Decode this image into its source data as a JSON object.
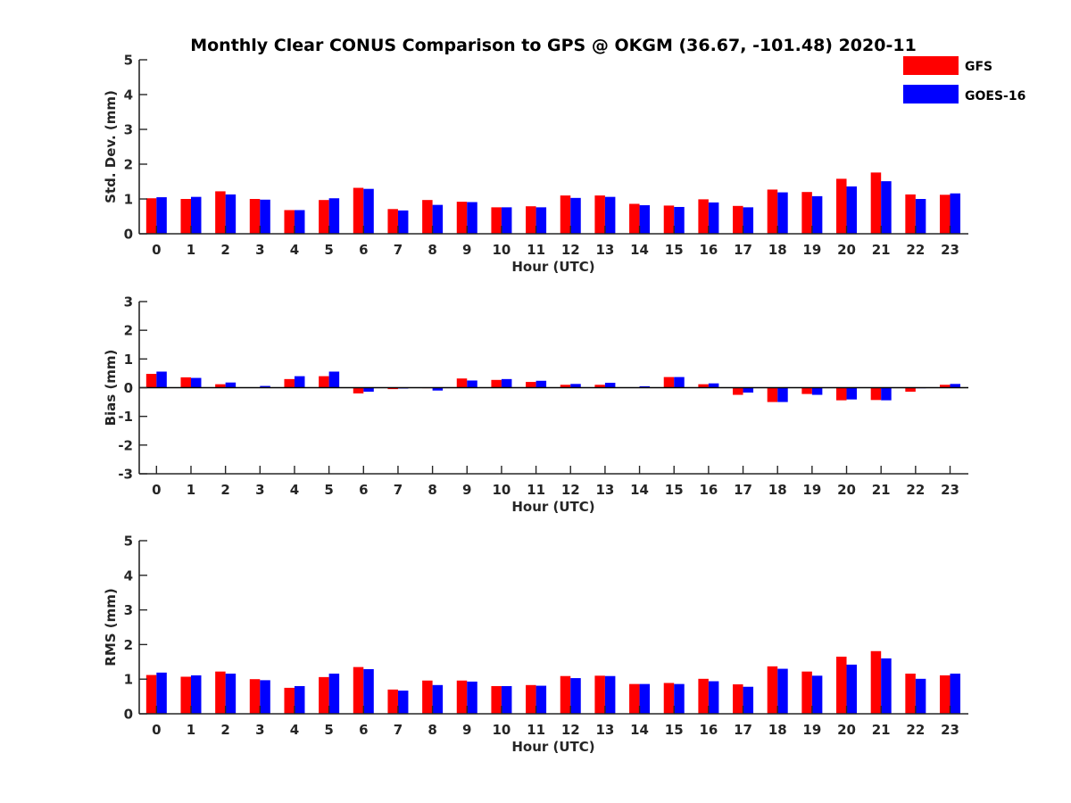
{
  "colors": {
    "gfs": "#ff0000",
    "goes": "#0000ff",
    "axis": "#262626"
  },
  "chart_data": {
    "type": "bar",
    "title": "Monthly Clear CONUS Comparison to GPS @ OKGM (36.67, -101.48) 2020-11",
    "legend": {
      "placement": "top-right",
      "entries": [
        "GFS",
        "GOES-16"
      ]
    },
    "grid": false,
    "categories": [
      "0",
      "1",
      "2",
      "3",
      "4",
      "5",
      "6",
      "7",
      "8",
      "9",
      "10",
      "11",
      "12",
      "13",
      "14",
      "15",
      "16",
      "17",
      "18",
      "19",
      "20",
      "21",
      "22",
      "23"
    ],
    "panels": [
      {
        "id": "std",
        "ylabel": "Std. Dev. (mm)",
        "xlabel": "Hour (UTC)",
        "ylim": [
          0,
          5
        ],
        "yticks": [
          0,
          1,
          2,
          3,
          4,
          5
        ],
        "series": [
          {
            "name": "GFS",
            "values": [
              1.02,
              1.0,
              1.22,
              1.0,
              0.68,
              0.97,
              1.32,
              0.71,
              0.97,
              0.92,
              0.76,
              0.79,
              1.1,
              1.1,
              0.86,
              0.81,
              0.99,
              0.8,
              1.27,
              1.2,
              1.58,
              1.76,
              1.13,
              1.12
            ]
          },
          {
            "name": "GOES-16",
            "values": [
              1.05,
              1.06,
              1.13,
              0.98,
              0.68,
              1.02,
              1.29,
              0.67,
              0.83,
              0.91,
              0.76,
              0.76,
              1.03,
              1.06,
              0.82,
              0.77,
              0.9,
              0.76,
              1.19,
              1.08,
              1.36,
              1.51,
              1.0,
              1.16
            ]
          }
        ]
      },
      {
        "id": "bias",
        "ylabel": "Bias (mm)",
        "xlabel": "Hour (UTC)",
        "ylim": [
          -3,
          3
        ],
        "yticks": [
          -3,
          -2,
          -1,
          0,
          1,
          2,
          3
        ],
        "series": [
          {
            "name": "GFS",
            "values": [
              0.48,
              0.36,
              0.12,
              0.01,
              0.3,
              0.4,
              -0.2,
              -0.05,
              0.0,
              0.32,
              0.27,
              0.2,
              0.1,
              0.1,
              0.01,
              0.37,
              0.12,
              -0.25,
              -0.5,
              -0.22,
              -0.44,
              -0.43,
              -0.14,
              0.1
            ]
          },
          {
            "name": "GOES-16",
            "values": [
              0.56,
              0.34,
              0.18,
              0.06,
              0.4,
              0.56,
              -0.14,
              -0.03,
              -0.1,
              0.25,
              0.3,
              0.24,
              0.13,
              0.17,
              0.05,
              0.37,
              0.15,
              -0.17,
              -0.5,
              -0.25,
              -0.41,
              -0.44,
              -0.02,
              0.13
            ]
          }
        ]
      },
      {
        "id": "rms",
        "ylabel": "RMS (mm)",
        "xlabel": "Hour (UTC)",
        "ylim": [
          0,
          5
        ],
        "yticks": [
          0,
          1,
          2,
          3,
          4,
          5
        ],
        "series": [
          {
            "name": "GFS",
            "values": [
              1.12,
              1.07,
              1.22,
              1.0,
              0.75,
              1.06,
              1.35,
              0.7,
              0.96,
              0.96,
              0.8,
              0.83,
              1.09,
              1.1,
              0.86,
              0.89,
              1.01,
              0.85,
              1.37,
              1.22,
              1.65,
              1.81,
              1.16,
              1.11
            ]
          },
          {
            "name": "GOES-16",
            "values": [
              1.19,
              1.11,
              1.16,
              0.97,
              0.8,
              1.16,
              1.29,
              0.67,
              0.83,
              0.93,
              0.8,
              0.81,
              1.03,
              1.09,
              0.86,
              0.86,
              0.94,
              0.78,
              1.3,
              1.1,
              1.42,
              1.6,
              1.01,
              1.16
            ]
          }
        ]
      }
    ]
  }
}
